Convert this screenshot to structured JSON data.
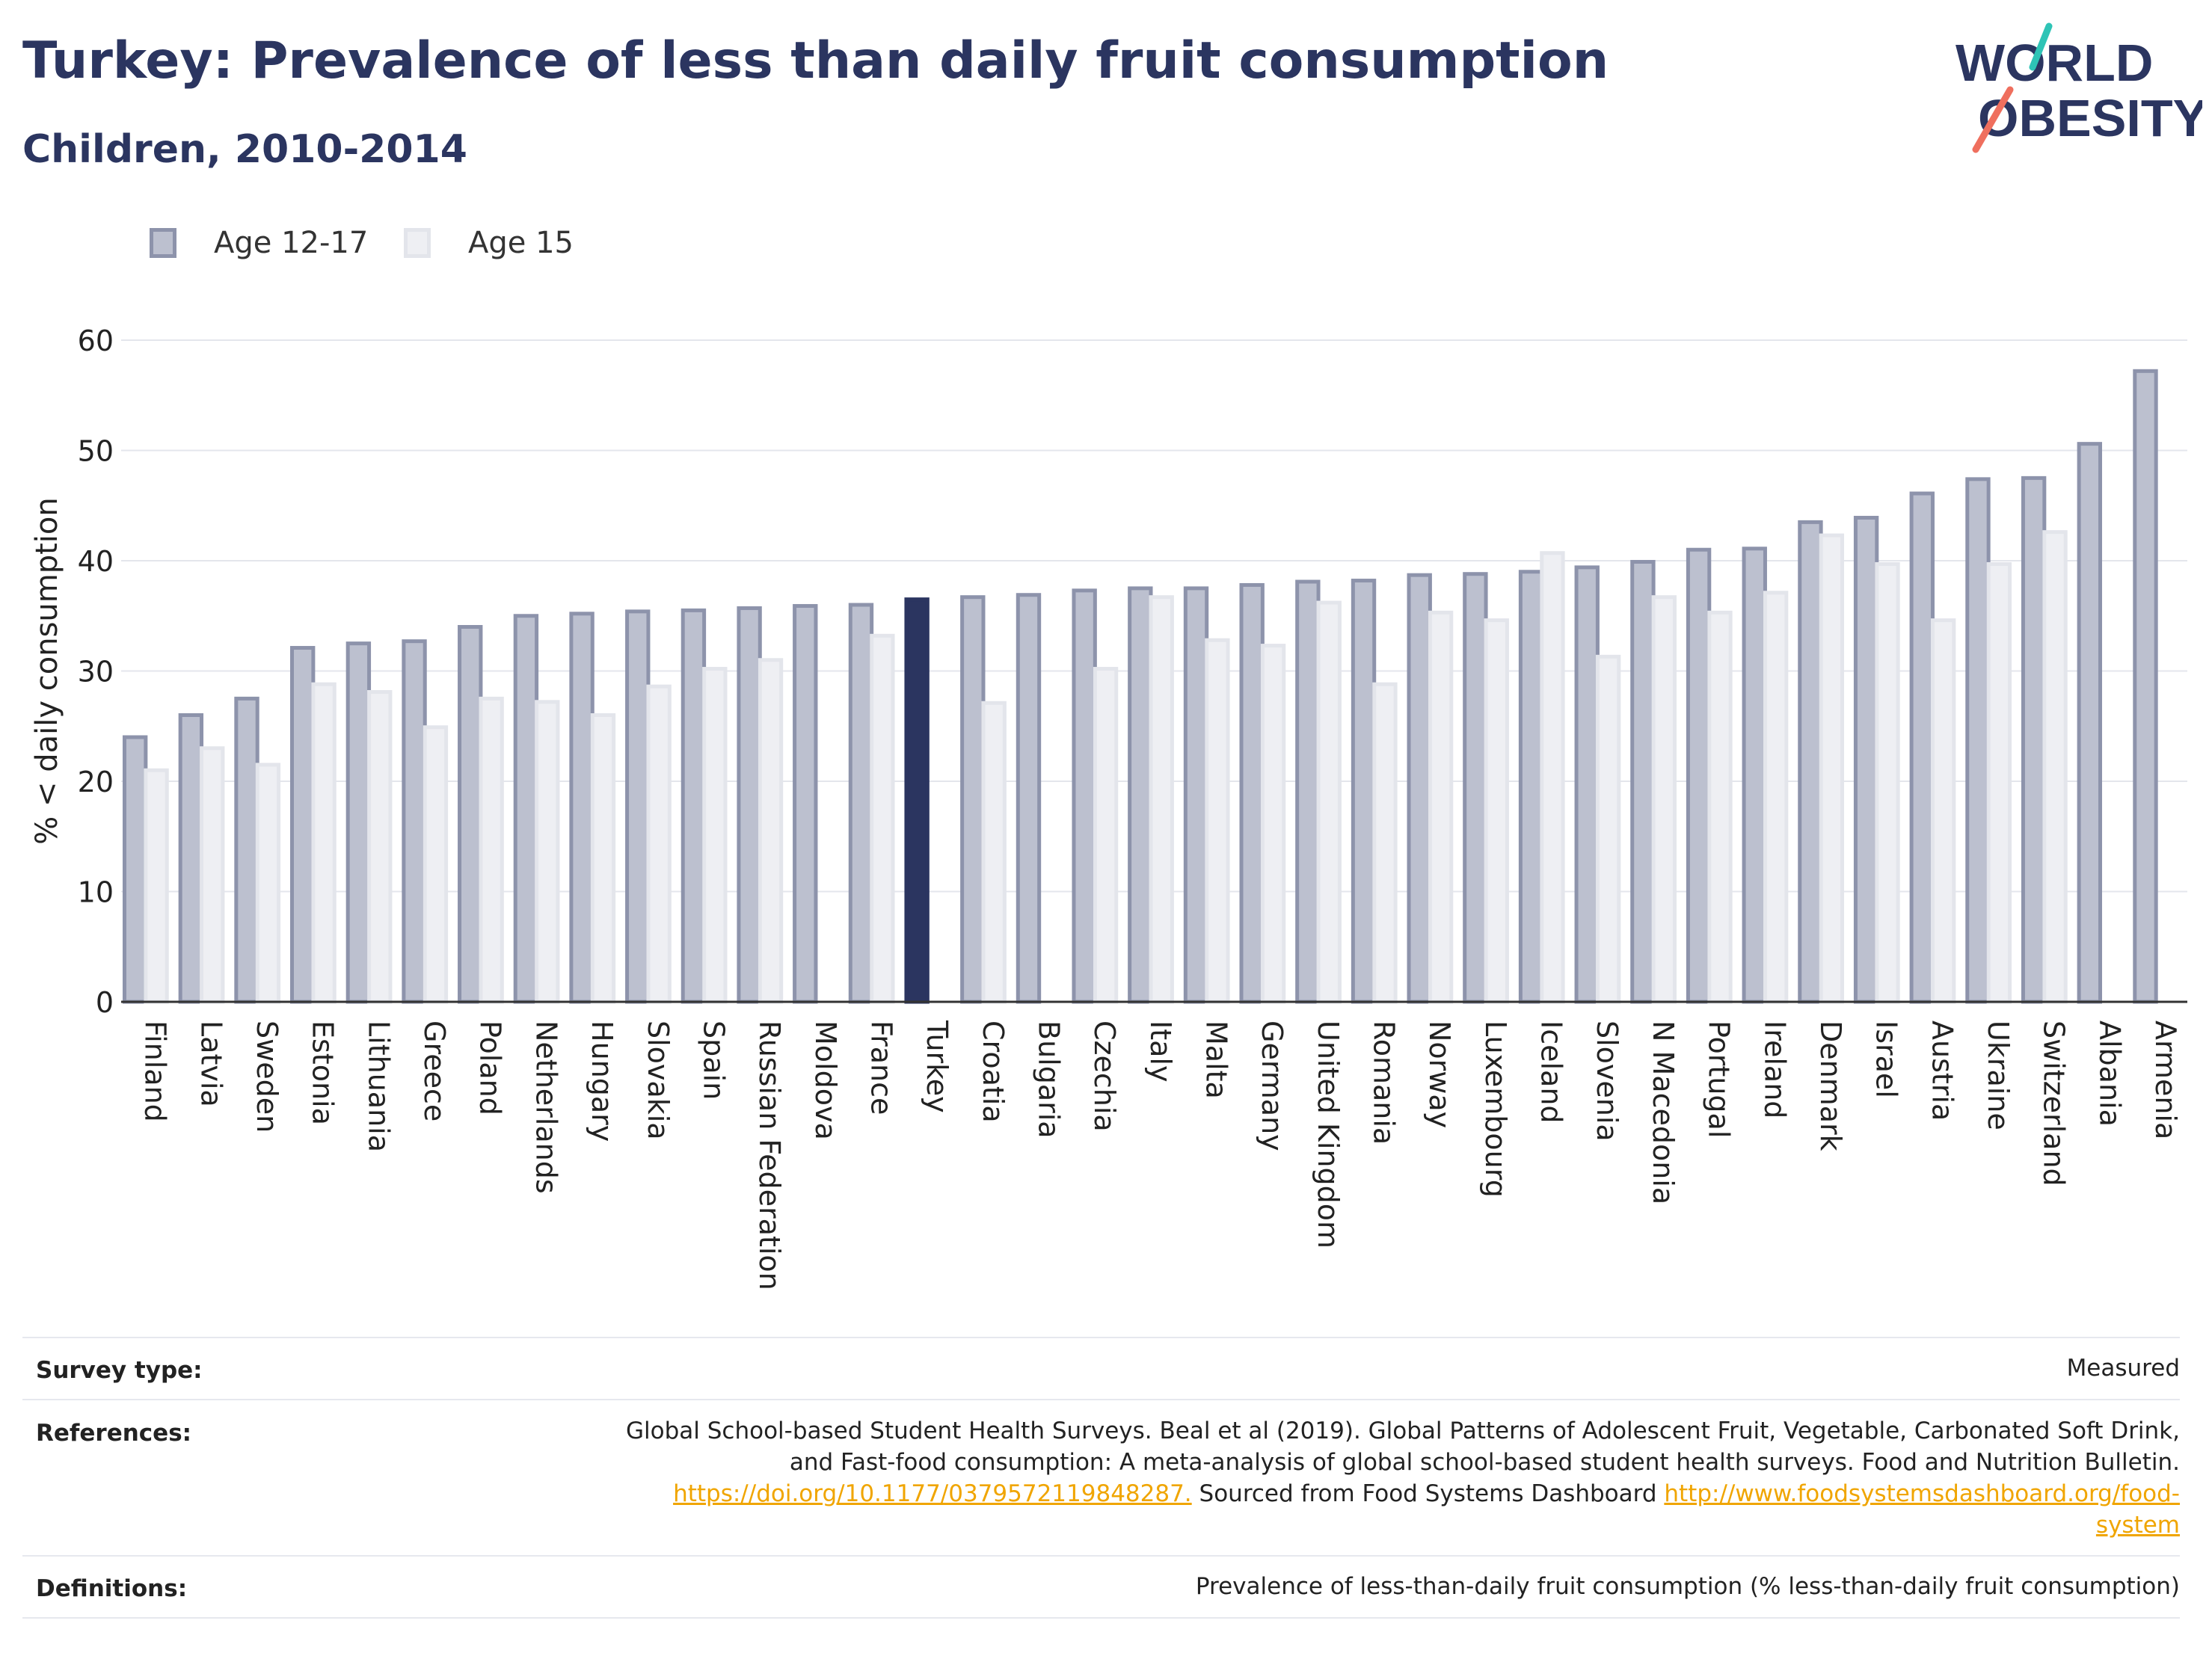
{
  "header": {
    "title": "Turkey: Prevalence of less than daily fruit consumption",
    "subtitle": "Children, 2010-2014"
  },
  "logo": {
    "line1": "WORLD",
    "line2": "OBESITY"
  },
  "colors": {
    "title": "#2b3560",
    "series1_fill": "#bcc0cf",
    "series1_stroke": "#8d93ab",
    "series2_fill": "#eeeff3",
    "series2_stroke": "#e3e5eb",
    "highlight": "#2b3560",
    "link": "#f0a500",
    "logo_teal": "#2ec4b6",
    "logo_coral": "#ef6f5e"
  },
  "chart_data": {
    "type": "bar",
    "ylabel": "% < daily consumption",
    "xlabel": "",
    "ylim": [
      0,
      60
    ],
    "yticks": [
      0,
      10,
      20,
      30,
      40,
      50,
      60
    ],
    "grid": true,
    "legend_position": "top-left",
    "highlight_category": "Turkey",
    "categories": [
      "Finland",
      "Latvia",
      "Sweden",
      "Estonia",
      "Lithuania",
      "Greece",
      "Poland",
      "Netherlands",
      "Hungary",
      "Slovakia",
      "Spain",
      "Russian Federation",
      "Moldova",
      "France",
      "Turkey",
      "Croatia",
      "Bulgaria",
      "Czechia",
      "Italy",
      "Malta",
      "Germany",
      "United Kingdom",
      "Romania",
      "Norway",
      "Luxembourg",
      "Iceland",
      "Slovenia",
      "N Macedonia",
      "Portugal",
      "Ireland",
      "Denmark",
      "Israel",
      "Austria",
      "Ukraine",
      "Switzerland",
      "Albania",
      "Armenia"
    ],
    "series": [
      {
        "name": "Age 12-17",
        "values": [
          24,
          26,
          27.5,
          32.1,
          32.5,
          32.7,
          34,
          35,
          35.2,
          35.4,
          35.5,
          35.7,
          35.9,
          36,
          36.5,
          36.7,
          36.9,
          37.3,
          37.5,
          37.5,
          37.8,
          38.1,
          38.2,
          38.7,
          38.8,
          39,
          39.4,
          39.9,
          41,
          41.1,
          43.5,
          43.9,
          46.1,
          47.4,
          47.5,
          50.6,
          57.2
        ]
      },
      {
        "name": "Age 15",
        "values": [
          21,
          23,
          21.5,
          28.8,
          28.1,
          24.9,
          27.5,
          27.2,
          26,
          28.6,
          30.2,
          31,
          null,
          33.2,
          null,
          27.1,
          null,
          30.2,
          36.7,
          32.8,
          32.3,
          36.2,
          28.8,
          35.3,
          34.6,
          40.7,
          31.3,
          36.7,
          35.3,
          37.1,
          42.3,
          39.7,
          34.6,
          39.7,
          42.6,
          null,
          null
        ]
      }
    ]
  },
  "info": {
    "survey_label": "Survey type:",
    "survey_value": "Measured",
    "references_label": "References:",
    "ref_line1": "Global School-based Student Health Surveys. Beal et al (2019). Global Patterns of Adolescent Fruit, Vegetable, Carbonated Soft Drink,",
    "ref_line2": "and Fast-food consumption: A meta-analysis of global school-based student health surveys. Food and Nutrition Bulletin.",
    "ref_link1": "https://doi.org/10.1177/0379572119848287.",
    "ref_mid": " Sourced from Food Systems Dashboard ",
    "ref_link2a": "http://www.foodsystemsdashboard.org/food-",
    "ref_link2b": "system",
    "definitions_label": "Definitions:",
    "definitions_value": "Prevalence of less-than-daily fruit consumption (% less-than-daily fruit consumption)"
  }
}
